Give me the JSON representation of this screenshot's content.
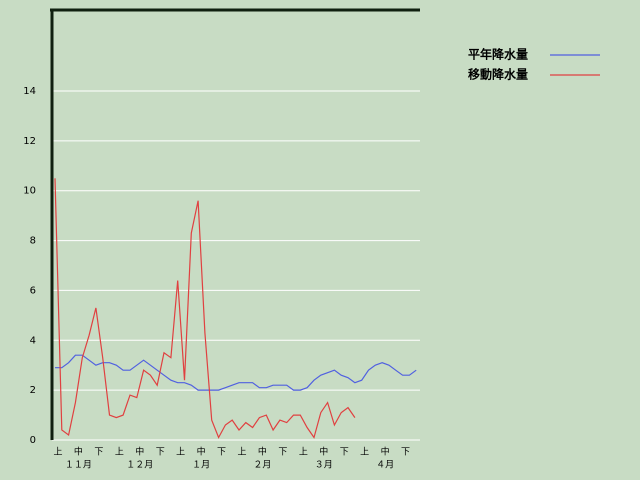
{
  "chart_data": {
    "type": "line",
    "categories": [
      "上",
      null,
      null,
      "中",
      null,
      null,
      "下",
      null,
      null,
      "上",
      null,
      null,
      "中",
      null,
      null,
      "下",
      null,
      null,
      "上",
      null,
      null,
      "中",
      null,
      null,
      "下",
      null,
      null,
      "上",
      null,
      null,
      "中",
      null,
      null,
      "下",
      null,
      null,
      "上",
      null,
      null,
      "中",
      null,
      null,
      "下",
      null,
      null,
      "上",
      null,
      null,
      "中",
      null,
      null,
      "下",
      null,
      null
    ],
    "month_labels": [
      "１１月",
      "１２月",
      "１月",
      "２月",
      "３月",
      "４月"
    ],
    "series": [
      {
        "name": "平年降水量",
        "color": "#5060e0",
        "values": [
          2.9,
          2.9,
          3.1,
          3.4,
          3.4,
          3.2,
          3.0,
          3.1,
          3.1,
          3.0,
          2.8,
          2.8,
          3.0,
          3.2,
          3.0,
          2.8,
          2.6,
          2.4,
          2.3,
          2.3,
          2.2,
          2.0,
          2.0,
          2.0,
          2.0,
          2.1,
          2.2,
          2.3,
          2.3,
          2.3,
          2.1,
          2.1,
          2.2,
          2.2,
          2.2,
          2.0,
          2.0,
          2.1,
          2.4,
          2.6,
          2.7,
          2.8,
          2.6,
          2.5,
          2.3,
          2.4,
          2.8,
          3.0,
          3.1,
          3.0,
          2.8,
          2.6,
          2.6,
          2.8
        ]
      },
      {
        "name": "移動降水量",
        "color": "#e04040",
        "values": [
          10.5,
          0.4,
          0.2,
          1.5,
          3.3,
          4.2,
          5.3,
          3.3,
          1.0,
          0.9,
          1.0,
          1.8,
          1.7,
          2.8,
          2.6,
          2.2,
          3.5,
          3.3,
          6.4,
          2.4,
          8.3,
          9.6,
          4.3,
          0.8,
          0.1,
          0.6,
          0.8,
          0.4,
          0.7,
          0.5,
          0.9,
          1.0,
          0.4,
          0.8,
          0.7,
          1.0,
          1.0,
          0.5,
          0.1,
          1.1,
          1.5,
          0.6,
          1.1,
          1.3,
          0.9,
          null,
          null,
          null,
          null,
          null,
          null,
          null,
          null,
          null
        ]
      }
    ],
    "ylim": [
      0,
      17.25
    ],
    "yticks": [
      0,
      2,
      4,
      6,
      8,
      10,
      12,
      14
    ],
    "grid": true
  }
}
